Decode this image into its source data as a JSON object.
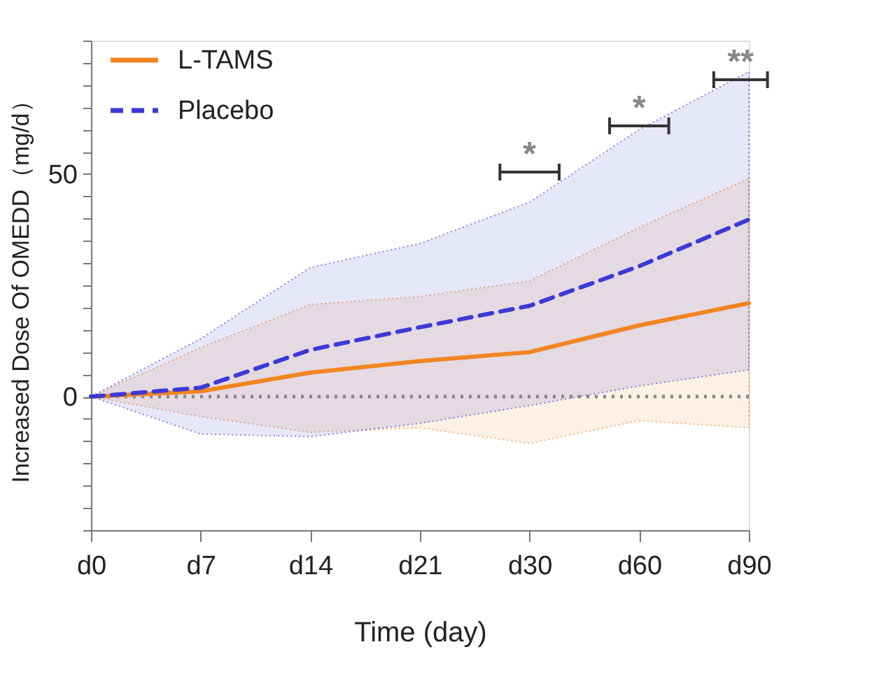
{
  "chart_data": {
    "type": "line",
    "xlabel": "Time (day)",
    "ylabel": "Increased Dose Of OMEDD（mg/d）",
    "categories": [
      "d0",
      "d7",
      "d14",
      "d21",
      "d30",
      "d60",
      "d90"
    ],
    "series": [
      {
        "name": "L-TAMS",
        "color": "#f28522",
        "line_style": "solid",
        "values": [
          0,
          1.2,
          5.4,
          8,
          10,
          16,
          21
        ],
        "lower": [
          0,
          -4.5,
          -8,
          -7,
          -10.5,
          -5.4,
          -7
        ],
        "upper": [
          0,
          11,
          20.7,
          22.5,
          26,
          38,
          49
        ]
      },
      {
        "name": "Placebo",
        "color": "#3a3ad6",
        "line_style": "dashed",
        "values": [
          0,
          2,
          10.5,
          15.6,
          20.4,
          29.3,
          39.8
        ],
        "lower": [
          0,
          -8.4,
          -9,
          -6,
          -2,
          2.4,
          6
        ],
        "upper": [
          0,
          13,
          29,
          34.4,
          43.7,
          60,
          73
        ]
      }
    ],
    "ylim": [
      -30,
      80
    ],
    "yticks": [
      {
        "value": -30,
        "label": null
      },
      {
        "value": -25,
        "label": null
      },
      {
        "value": -20,
        "label": null
      },
      {
        "value": -15,
        "label": null
      },
      {
        "value": -10,
        "label": null
      },
      {
        "value": -5,
        "label": null
      },
      0,
      {
        "value": 5,
        "label": null
      },
      {
        "value": 10,
        "label": null
      },
      {
        "value": 15,
        "label": null
      },
      {
        "value": 20,
        "label": null
      },
      {
        "value": 25,
        "label": null
      },
      {
        "value": 30,
        "label": null
      },
      {
        "value": 35,
        "label": null
      },
      {
        "value": 40,
        "label": null
      },
      {
        "value": 45,
        "label": null
      },
      50,
      {
        "value": 55,
        "label": null
      },
      {
        "value": 60,
        "label": null
      },
      {
        "value": 65,
        "label": null
      },
      {
        "value": 70,
        "label": null
      },
      {
        "value": 75,
        "label": null
      },
      {
        "value": 80,
        "label": null
      }
    ],
    "ref_lines": [
      {
        "axis": "y",
        "value": 0,
        "label": null,
        "color": "#888888",
        "line_style": "dotted"
      }
    ],
    "annotations": [
      "*",
      "*",
      "**"
    ],
    "marker": "none",
    "grid": false,
    "legend": "top left"
  }
}
